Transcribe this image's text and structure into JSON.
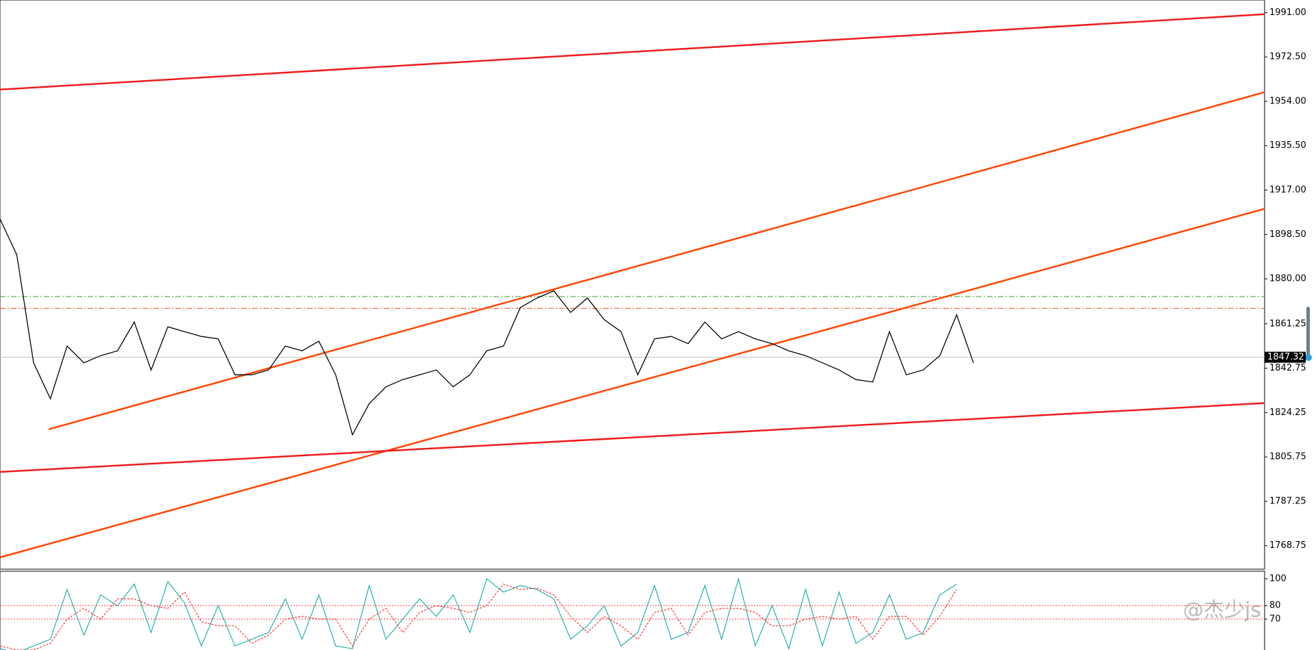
{
  "chart_data": [
    {
      "type": "line",
      "color": "#000000",
      "values": [
        1905,
        1890,
        1845,
        1830,
        1852,
        1845,
        1848,
        1850,
        1862,
        1842,
        1860,
        1858,
        1856,
        1855,
        1840,
        1840,
        1842,
        1852,
        1850,
        1854,
        1840,
        1815,
        1828,
        1835,
        1838,
        1840,
        1842,
        1835,
        1840,
        1850,
        1852,
        1868,
        1872,
        1875,
        1866,
        1872,
        1863,
        1858,
        1840,
        1855,
        1856,
        1853,
        1862,
        1855,
        1858,
        1855,
        1853,
        1850,
        1848,
        1845,
        1842,
        1838,
        1837,
        1858,
        1840,
        1842,
        1848,
        1865,
        1845
      ],
      "xlim": [
        0,
        75.35
      ],
      "ylim": [
        1758.97,
        1996.24
      ],
      "yticks": [
        {
          "value": 1991,
          "label": "1991.00"
        },
        {
          "value": 1972.5,
          "label": "1972.50"
        },
        {
          "value": 1954,
          "label": "1954.00"
        },
        {
          "value": 1935.5,
          "label": "1935.50"
        },
        {
          "value": 1917,
          "label": "1917.00"
        },
        {
          "value": 1898.5,
          "label": "1898.50"
        },
        {
          "value": 1880,
          "label": "1880.00"
        },
        {
          "value": 1861.25,
          "label": "1861.25"
        },
        {
          "value": 1842.75,
          "label": "1842.75"
        },
        {
          "value": 1824.25,
          "label": "1824.25"
        },
        {
          "value": 1805.75,
          "label": "1805.75"
        },
        {
          "value": 1787.25,
          "label": "1787.25"
        },
        {
          "value": 1768.75,
          "label": "1768.75"
        }
      ],
      "trendlines": [
        {
          "color": "#ee1c1c",
          "x": [
            0,
            75.35
          ],
          "y": [
            1958.9,
            1990.3
          ]
        },
        {
          "color": "#ff4500",
          "x": [
            2.9,
            75.35
          ],
          "y": [
            1817.3,
            1957.8
          ]
        },
        {
          "color": "#ff4500",
          "x": [
            0,
            75.35
          ],
          "y": [
            1763.9,
            1909.2
          ]
        },
        {
          "color": "#ee1c1c",
          "x": [
            0,
            75.35
          ],
          "y": [
            1799.5,
            1828.2
          ]
        }
      ],
      "hlines": [
        {
          "color": "#2e9b2e",
          "value": 1872.6
        },
        {
          "color": "#ff4500",
          "value": 1867.7
        }
      ],
      "last_price": {
        "value": 1847.32,
        "label": "1847.32"
      },
      "watermark": "@杰少js"
    },
    {
      "type": "line",
      "xlim": [
        0,
        75.35
      ],
      "ylim": [
        47,
        105.6
      ],
      "yticks": [
        100,
        80,
        70
      ],
      "levels": [
        80,
        70
      ],
      "series": [
        {
          "color": "#20b2aa",
          "values": [
            48,
            45,
            50,
            55,
            92,
            58,
            88,
            80,
            96,
            60,
            98,
            82,
            50,
            80,
            50,
            55,
            60,
            85,
            55,
            88,
            50,
            48,
            95,
            55,
            70,
            85,
            72,
            88,
            60,
            100,
            90,
            95,
            92,
            85,
            55,
            65,
            80,
            50,
            60,
            95,
            55,
            60,
            95,
            55,
            100,
            50,
            80,
            48,
            92,
            50,
            90,
            52,
            60,
            88,
            55,
            60,
            88,
            96
          ]
        },
        {
          "color": "#ff3030",
          "values": [
            50,
            47,
            47,
            52,
            70,
            78,
            70,
            85,
            85,
            80,
            78,
            90,
            68,
            65,
            65,
            52,
            58,
            70,
            72,
            70,
            70,
            50,
            70,
            78,
            60,
            75,
            80,
            78,
            75,
            80,
            96,
            92,
            93,
            88,
            72,
            60,
            72,
            65,
            55,
            75,
            78,
            58,
            75,
            78,
            78,
            75,
            65,
            65,
            70,
            72,
            70,
            72,
            55,
            72,
            72,
            58,
            72,
            92
          ]
        }
      ]
    }
  ]
}
